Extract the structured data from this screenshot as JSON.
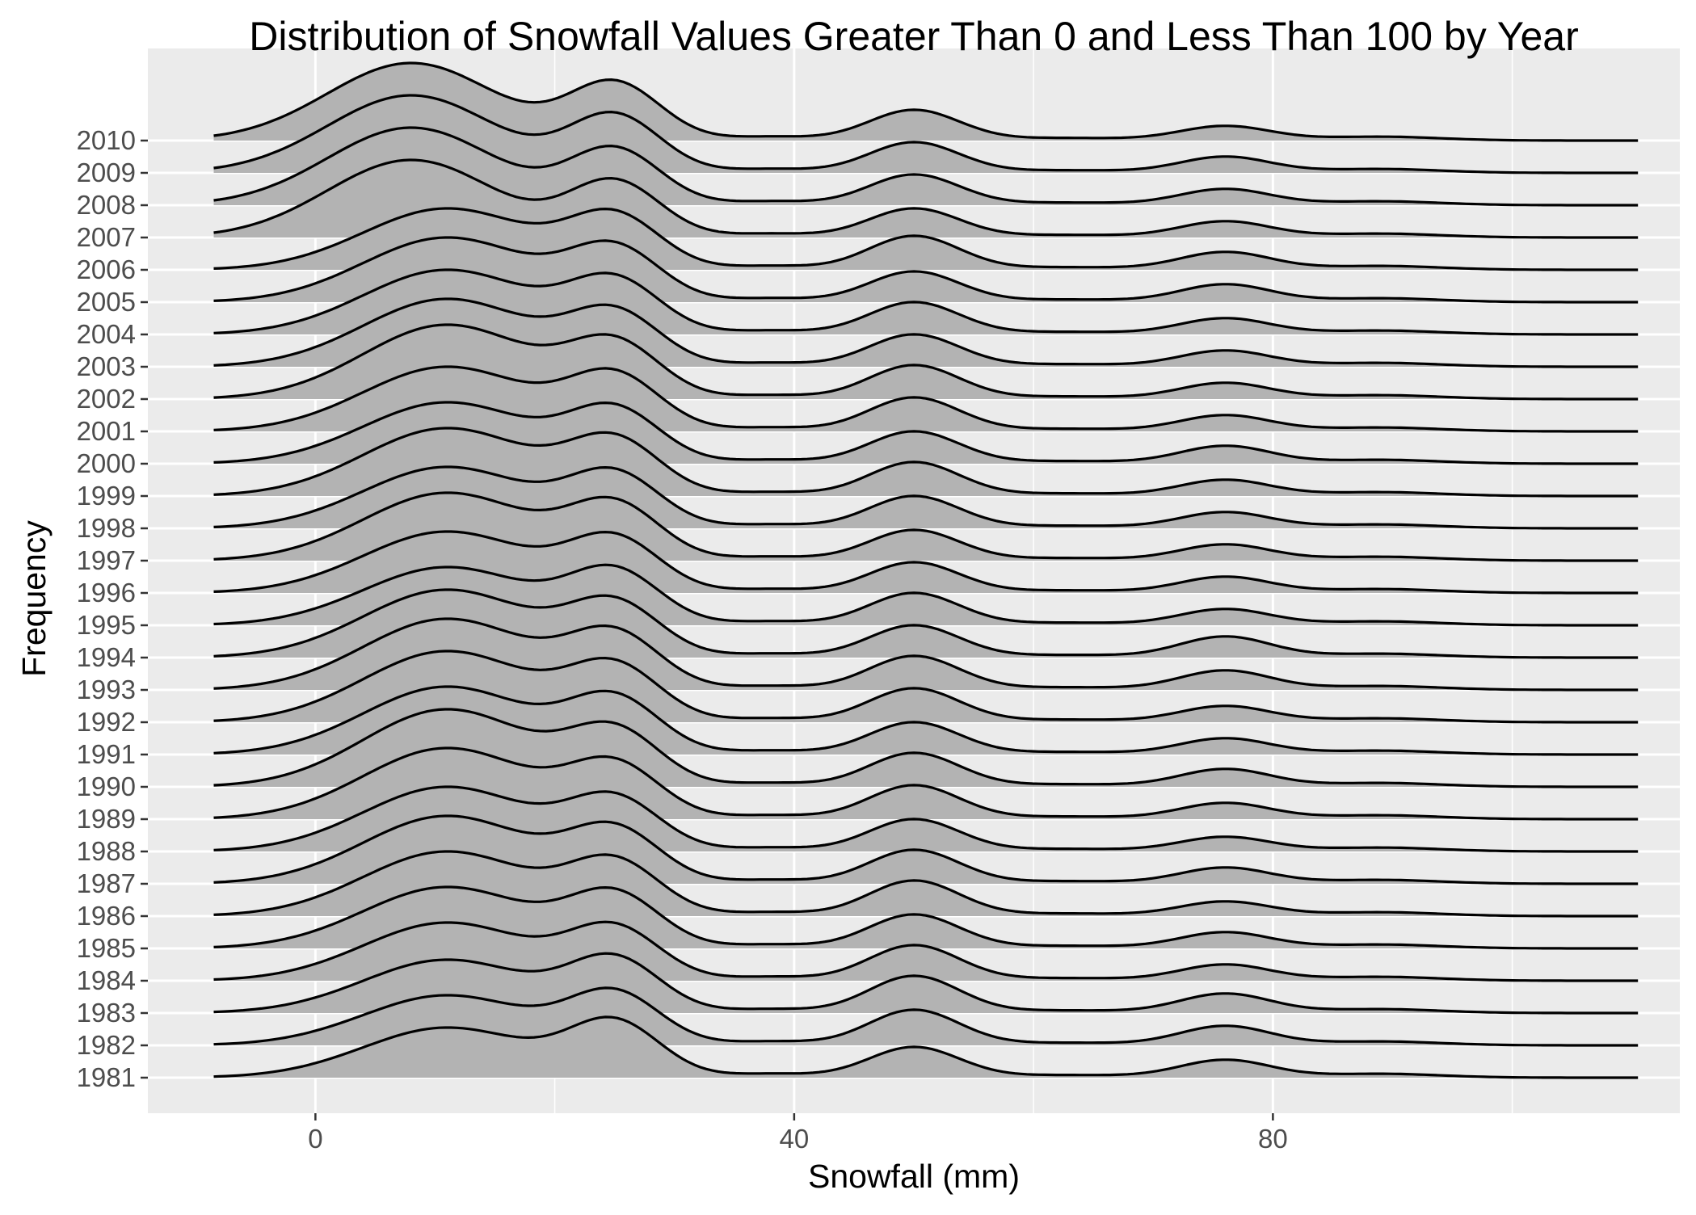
{
  "chart_data": {
    "type": "ridgeline",
    "title": "Distribution of Snowfall Values Greater Than 0 and Less Than 100 by Year",
    "xlabel": "Snowfall (mm)",
    "ylabel": "Frequency",
    "xlim": [
      -14,
      114
    ],
    "x_ticks": [
      0,
      40,
      80
    ],
    "x_tick_labels": [
      "0",
      "40",
      "80"
    ],
    "grid": true,
    "legend": "none",
    "colors": {
      "panel": "#EBEBEB",
      "grid": "#FFFFFF",
      "fill": "#B3B3B3",
      "line": "#000000",
      "tick_text": "#4D4D4D"
    },
    "categories": [
      "1981",
      "1982",
      "1983",
      "1984",
      "1985",
      "1986",
      "1987",
      "1988",
      "1989",
      "1990",
      "1991",
      "1992",
      "1993",
      "1994",
      "1995",
      "1996",
      "1997",
      "1998",
      "1999",
      "2000",
      "2001",
      "2002",
      "2003",
      "2004",
      "2005",
      "2006",
      "2007",
      "2008",
      "2009",
      "2010"
    ],
    "density_x_range": [
      -8.5,
      110.5
    ],
    "mode_locations": [
      11,
      25,
      38,
      50,
      76,
      89
    ],
    "series": [
      {
        "name": "1981",
        "peaks": [
          {
            "x": 11,
            "h": 1.55
          },
          {
            "x": 25,
            "h": 1.65
          },
          {
            "x": 50,
            "h": 0.95
          },
          {
            "x": 76,
            "h": 0.55
          }
        ]
      },
      {
        "name": "1982",
        "peaks": [
          {
            "x": 11,
            "h": 1.55
          },
          {
            "x": 25,
            "h": 1.55
          },
          {
            "x": 50,
            "h": 1.1
          },
          {
            "x": 76,
            "h": 0.6
          }
        ]
      },
      {
        "name": "1983",
        "peaks": [
          {
            "x": 11,
            "h": 1.65
          },
          {
            "x": 25,
            "h": 1.6
          },
          {
            "x": 50,
            "h": 1.15
          },
          {
            "x": 76,
            "h": 0.6
          }
        ]
      },
      {
        "name": "1984",
        "peaks": [
          {
            "x": 11,
            "h": 1.8
          },
          {
            "x": 25,
            "h": 1.55
          },
          {
            "x": 50,
            "h": 1.1
          },
          {
            "x": 76,
            "h": 0.5
          }
        ]
      },
      {
        "name": "1985",
        "peaks": [
          {
            "x": 11,
            "h": 1.9
          },
          {
            "x": 25,
            "h": 1.6
          },
          {
            "x": 50,
            "h": 1.05
          },
          {
            "x": 76,
            "h": 0.5
          }
        ]
      },
      {
        "name": "1986",
        "peaks": [
          {
            "x": 11,
            "h": 2.0
          },
          {
            "x": 25,
            "h": 1.6
          },
          {
            "x": 50,
            "h": 1.1
          },
          {
            "x": 76,
            "h": 0.45
          }
        ]
      },
      {
        "name": "1987",
        "peaks": [
          {
            "x": 11,
            "h": 2.1
          },
          {
            "x": 25,
            "h": 1.6
          },
          {
            "x": 50,
            "h": 1.05
          },
          {
            "x": 76,
            "h": 0.5
          }
        ]
      },
      {
        "name": "1988",
        "peaks": [
          {
            "x": 11,
            "h": 2.0
          },
          {
            "x": 25,
            "h": 1.55
          },
          {
            "x": 50,
            "h": 1.0
          },
          {
            "x": 76,
            "h": 0.45
          }
        ]
      },
      {
        "name": "1989",
        "peaks": [
          {
            "x": 11,
            "h": 2.2
          },
          {
            "x": 25,
            "h": 1.6
          },
          {
            "x": 50,
            "h": 1.05
          },
          {
            "x": 76,
            "h": 0.5
          }
        ]
      },
      {
        "name": "1990",
        "peaks": [
          {
            "x": 11,
            "h": 2.4
          },
          {
            "x": 25,
            "h": 1.65
          },
          {
            "x": 50,
            "h": 1.05
          },
          {
            "x": 76,
            "h": 0.55
          }
        ]
      },
      {
        "name": "1991",
        "peaks": [
          {
            "x": 11,
            "h": 2.1
          },
          {
            "x": 25,
            "h": 1.65
          },
          {
            "x": 50,
            "h": 1.0
          },
          {
            "x": 76,
            "h": 0.5
          }
        ]
      },
      {
        "name": "1992",
        "peaks": [
          {
            "x": 11,
            "h": 2.2
          },
          {
            "x": 25,
            "h": 1.65
          },
          {
            "x": 50,
            "h": 1.05
          },
          {
            "x": 76,
            "h": 0.5
          }
        ]
      },
      {
        "name": "1993",
        "peaks": [
          {
            "x": 11,
            "h": 2.2
          },
          {
            "x": 25,
            "h": 1.65
          },
          {
            "x": 50,
            "h": 1.05
          },
          {
            "x": 76,
            "h": 0.6
          }
        ]
      },
      {
        "name": "1994",
        "peaks": [
          {
            "x": 11,
            "h": 2.1
          },
          {
            "x": 25,
            "h": 1.6
          },
          {
            "x": 50,
            "h": 1.0
          },
          {
            "x": 76,
            "h": 0.65
          }
        ]
      },
      {
        "name": "1995",
        "peaks": [
          {
            "x": 11,
            "h": 1.8
          },
          {
            "x": 25,
            "h": 1.6
          },
          {
            "x": 50,
            "h": 1.0
          },
          {
            "x": 76,
            "h": 0.5
          }
        ]
      },
      {
        "name": "1996",
        "peaks": [
          {
            "x": 11,
            "h": 1.9
          },
          {
            "x": 25,
            "h": 1.6
          },
          {
            "x": 50,
            "h": 0.95
          },
          {
            "x": 76,
            "h": 0.5
          }
        ]
      },
      {
        "name": "1997",
        "peaks": [
          {
            "x": 11,
            "h": 2.1
          },
          {
            "x": 25,
            "h": 1.65
          },
          {
            "x": 50,
            "h": 0.95
          },
          {
            "x": 76,
            "h": 0.5
          }
        ]
      },
      {
        "name": "1998",
        "peaks": [
          {
            "x": 11,
            "h": 1.9
          },
          {
            "x": 25,
            "h": 1.6
          },
          {
            "x": 50,
            "h": 1.0
          },
          {
            "x": 76,
            "h": 0.5
          }
        ]
      },
      {
        "name": "1999",
        "peaks": [
          {
            "x": 11,
            "h": 2.1
          },
          {
            "x": 25,
            "h": 1.65
          },
          {
            "x": 50,
            "h": 1.05
          },
          {
            "x": 76,
            "h": 0.5
          }
        ]
      },
      {
        "name": "2000",
        "peaks": [
          {
            "x": 11,
            "h": 1.9
          },
          {
            "x": 25,
            "h": 1.6
          },
          {
            "x": 50,
            "h": 1.0
          },
          {
            "x": 76,
            "h": 0.55
          }
        ]
      },
      {
        "name": "2001",
        "peaks": [
          {
            "x": 11,
            "h": 2.0
          },
          {
            "x": 25,
            "h": 1.65
          },
          {
            "x": 50,
            "h": 1.05
          },
          {
            "x": 76,
            "h": 0.5
          }
        ]
      },
      {
        "name": "2002",
        "peaks": [
          {
            "x": 11,
            "h": 2.3
          },
          {
            "x": 25,
            "h": 1.65
          },
          {
            "x": 50,
            "h": 1.05
          },
          {
            "x": 76,
            "h": 0.5
          }
        ]
      },
      {
        "name": "2003",
        "peaks": [
          {
            "x": 11,
            "h": 2.1
          },
          {
            "x": 25,
            "h": 1.6
          },
          {
            "x": 50,
            "h": 1.0
          },
          {
            "x": 76,
            "h": 0.5
          }
        ]
      },
      {
        "name": "2004",
        "peaks": [
          {
            "x": 11,
            "h": 2.0
          },
          {
            "x": 25,
            "h": 1.6
          },
          {
            "x": 50,
            "h": 1.0
          },
          {
            "x": 76,
            "h": 0.5
          }
        ]
      },
      {
        "name": "2005",
        "peaks": [
          {
            "x": 11,
            "h": 2.0
          },
          {
            "x": 25,
            "h": 1.6
          },
          {
            "x": 50,
            "h": 0.95
          },
          {
            "x": 76,
            "h": 0.55
          }
        ]
      },
      {
        "name": "2006",
        "peaks": [
          {
            "x": 11,
            "h": 1.9
          },
          {
            "x": 25,
            "h": 1.6
          },
          {
            "x": 50,
            "h": 1.05
          },
          {
            "x": 76,
            "h": 0.55
          }
        ]
      },
      {
        "name": "2007",
        "peaks": [
          {
            "x": 8,
            "h": 2.4
          },
          {
            "x": 25,
            "h": 1.7
          },
          {
            "x": 50,
            "h": 0.9
          },
          {
            "x": 76,
            "h": 0.5
          }
        ]
      },
      {
        "name": "2008",
        "peaks": [
          {
            "x": 8,
            "h": 2.4
          },
          {
            "x": 25,
            "h": 1.7
          },
          {
            "x": 50,
            "h": 0.95
          },
          {
            "x": 76,
            "h": 0.5
          }
        ]
      },
      {
        "name": "2009",
        "peaks": [
          {
            "x": 8,
            "h": 2.4
          },
          {
            "x": 25,
            "h": 1.75
          },
          {
            "x": 50,
            "h": 0.95
          },
          {
            "x": 76,
            "h": 0.5
          }
        ]
      },
      {
        "name": "2010",
        "peaks": [
          {
            "x": 8,
            "h": 2.4
          },
          {
            "x": 25,
            "h": 1.75
          },
          {
            "x": 50,
            "h": 0.95
          },
          {
            "x": 76,
            "h": 0.45
          }
        ]
      }
    ]
  }
}
